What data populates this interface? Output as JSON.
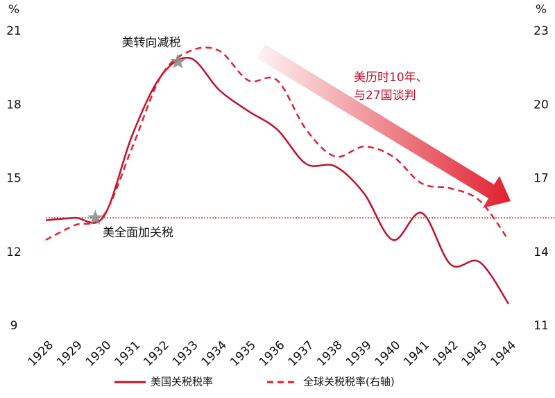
{
  "chart_data": {
    "type": "line",
    "categories": [
      "1928",
      "1929",
      "1930",
      "1931",
      "1932",
      "1933",
      "1934",
      "1935",
      "1936",
      "1937",
      "1938",
      "1939",
      "1940",
      "1941",
      "1942",
      "1943",
      "1944"
    ],
    "series": [
      {
        "name": "美国关税税率",
        "color": "#c0102a",
        "style": "solid",
        "values": [
          13.3,
          13.4,
          13.45,
          16.8,
          19.2,
          19.9,
          18.6,
          17.75,
          17.0,
          15.6,
          15.5,
          14.4,
          12.5,
          13.6,
          11.5,
          11.6,
          9.9
        ]
      },
      {
        "name": "全球关税税率(右轴)",
        "color": "#e0202e",
        "style": "dashed",
        "axis": "y2",
        "values": [
          14.5,
          15.1,
          15.5,
          18.3,
          21.2,
          22.2,
          22.2,
          21.0,
          21.0,
          19.0,
          17.9,
          18.3,
          17.9,
          16.8,
          16.6,
          16.1,
          14.5
        ]
      }
    ],
    "ylim": [
      9,
      21
    ],
    "yticks": [
      9,
      12,
      15,
      18,
      21
    ],
    "y_unit": "%",
    "y2lim": [
      11,
      23
    ],
    "y2ticks": [
      11,
      14,
      17,
      20,
      23
    ],
    "y2_unit": "%",
    "reference_line": {
      "value": 13.4,
      "color": "#e0202e"
    },
    "annotations": {
      "tariff_up": "美全面加关税",
      "tariff_down": "美转向减税",
      "negotiation": [
        "美历时10年、",
        "与27国谈判"
      ]
    }
  }
}
